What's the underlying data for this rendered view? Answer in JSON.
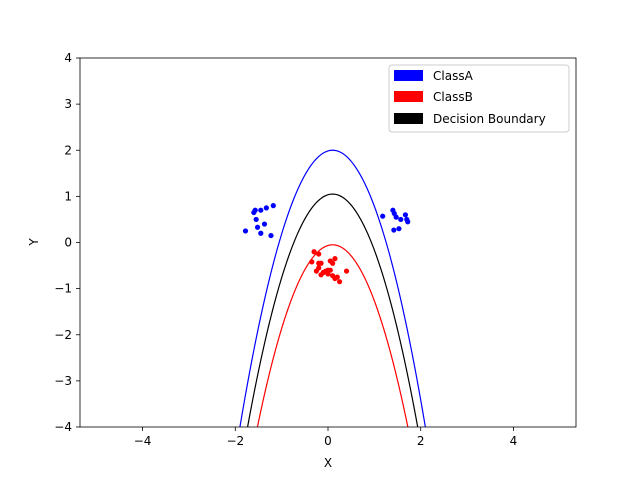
{
  "chart_data": {
    "type": "scatter",
    "title": "",
    "xlabel": "X",
    "ylabel": "Y",
    "xlim": [
      -5.35,
      5.35
    ],
    "ylim": [
      -4,
      4
    ],
    "xticks": [
      -4,
      -2,
      0,
      2,
      4
    ],
    "yticks": [
      -4,
      -3,
      -2,
      -1,
      0,
      1,
      2,
      3,
      4
    ],
    "xtick_labels": [
      "−4",
      "−2",
      "0",
      "2",
      "4"
    ],
    "ytick_labels": [
      "−4",
      "−3",
      "−2",
      "−1",
      "0",
      "1",
      "2",
      "3",
      "4"
    ],
    "grid": false,
    "legend_position": "top-right",
    "legend": [
      {
        "label": "ClassA",
        "color": "#0000ff"
      },
      {
        "label": "ClassB",
        "color": "#ff0000"
      },
      {
        "label": "Decision Boundary",
        "color": "#000000"
      }
    ],
    "points": [
      {
        "color": "#0000ff",
        "x": [
          -1.78,
          -1.6,
          -1.55,
          -1.45,
          -1.33,
          -1.18,
          -1.52,
          -1.37,
          -1.57,
          -1.45,
          -1.23,
          1.18,
          1.4,
          1.43,
          1.47,
          1.57,
          1.67,
          1.7,
          1.72,
          1.42,
          1.53
        ],
        "y": [
          0.25,
          0.65,
          0.5,
          0.7,
          0.75,
          0.8,
          0.33,
          0.4,
          0.7,
          0.2,
          0.15,
          0.57,
          0.7,
          0.63,
          0.55,
          0.5,
          0.6,
          0.5,
          0.45,
          0.27,
          0.3
        ]
      },
      {
        "color": "#ff0000",
        "x": [
          -0.3,
          -0.2,
          -0.15,
          -0.1,
          -0.05,
          0.0,
          0.05,
          0.1,
          0.15,
          0.2,
          0.25,
          0.4,
          -0.35,
          -0.2,
          -0.15,
          -0.1,
          0.05,
          0.1,
          0.15,
          -0.25,
          -0.2,
          0.0
        ],
        "y": [
          -0.2,
          -0.25,
          -0.45,
          -0.65,
          -0.62,
          -0.68,
          -0.4,
          -0.45,
          -0.35,
          -0.75,
          -0.85,
          -0.62,
          -0.42,
          -0.55,
          -0.7,
          -0.65,
          -0.6,
          -0.72,
          -0.78,
          -0.62,
          -0.45,
          -0.6
        ]
      }
    ],
    "curves": [
      {
        "color": "#0000ff",
        "type": "parabola",
        "vertex": [
          0.1,
          2.0
        ],
        "curvature": 1.5
      },
      {
        "color": "#000000",
        "type": "parabola",
        "vertex": [
          0.1,
          1.05
        ],
        "curvature": 1.5
      },
      {
        "color": "#ff0000",
        "type": "parabola",
        "vertex": [
          0.1,
          -0.05
        ],
        "curvature": 1.5
      }
    ]
  }
}
